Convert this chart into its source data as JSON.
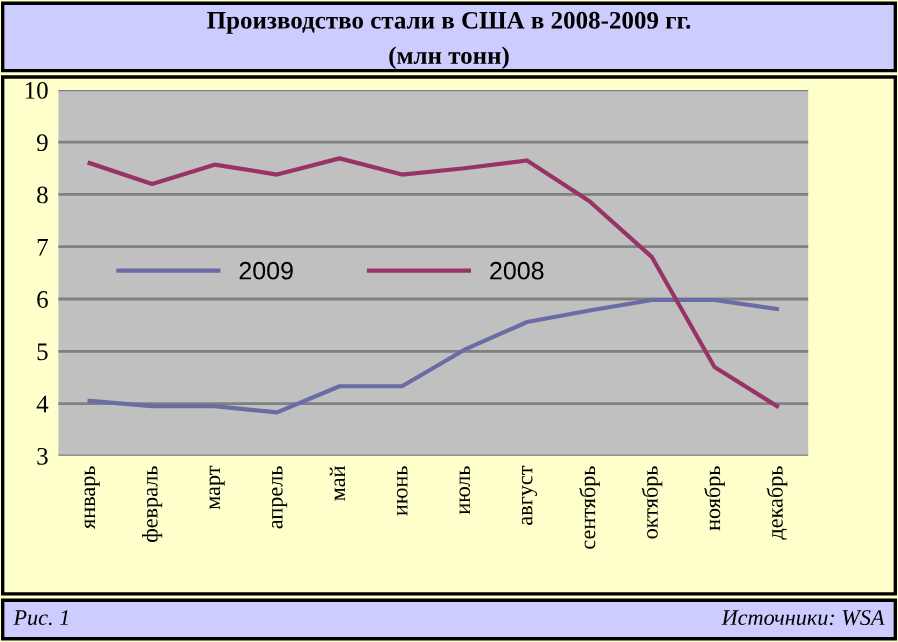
{
  "chart_data": {
    "type": "line",
    "title": "Производство стали в США в 2008-2009 гг.",
    "subtitle": "(млн тонн)",
    "categories": [
      "январь",
      "февраль",
      "март",
      "апрель",
      "май",
      "июнь",
      "июль",
      "август",
      "сентябрь",
      "октябрь",
      "ноябрь",
      "декабрь"
    ],
    "series": [
      {
        "name": "2009",
        "color": "#6b6ba6",
        "values": [
          4.05,
          3.95,
          3.95,
          3.83,
          4.33,
          4.33,
          5.03,
          5.56,
          5.78,
          5.98,
          5.98,
          5.81
        ]
      },
      {
        "name": "2008",
        "color": "#993366",
        "values": [
          8.6,
          8.2,
          8.57,
          8.38,
          8.69,
          8.38,
          8.5,
          8.65,
          7.87,
          6.8,
          4.7,
          3.95
        ]
      }
    ],
    "ylim": [
      3,
      10
    ],
    "yticks": [
      3,
      4,
      5,
      6,
      7,
      8,
      9,
      10
    ],
    "grid": "y",
    "legend": "left",
    "marker": "none",
    "line_style": "solid",
    "annotations": [
      "Рис. 1",
      "Источники: WSA"
    ]
  }
}
